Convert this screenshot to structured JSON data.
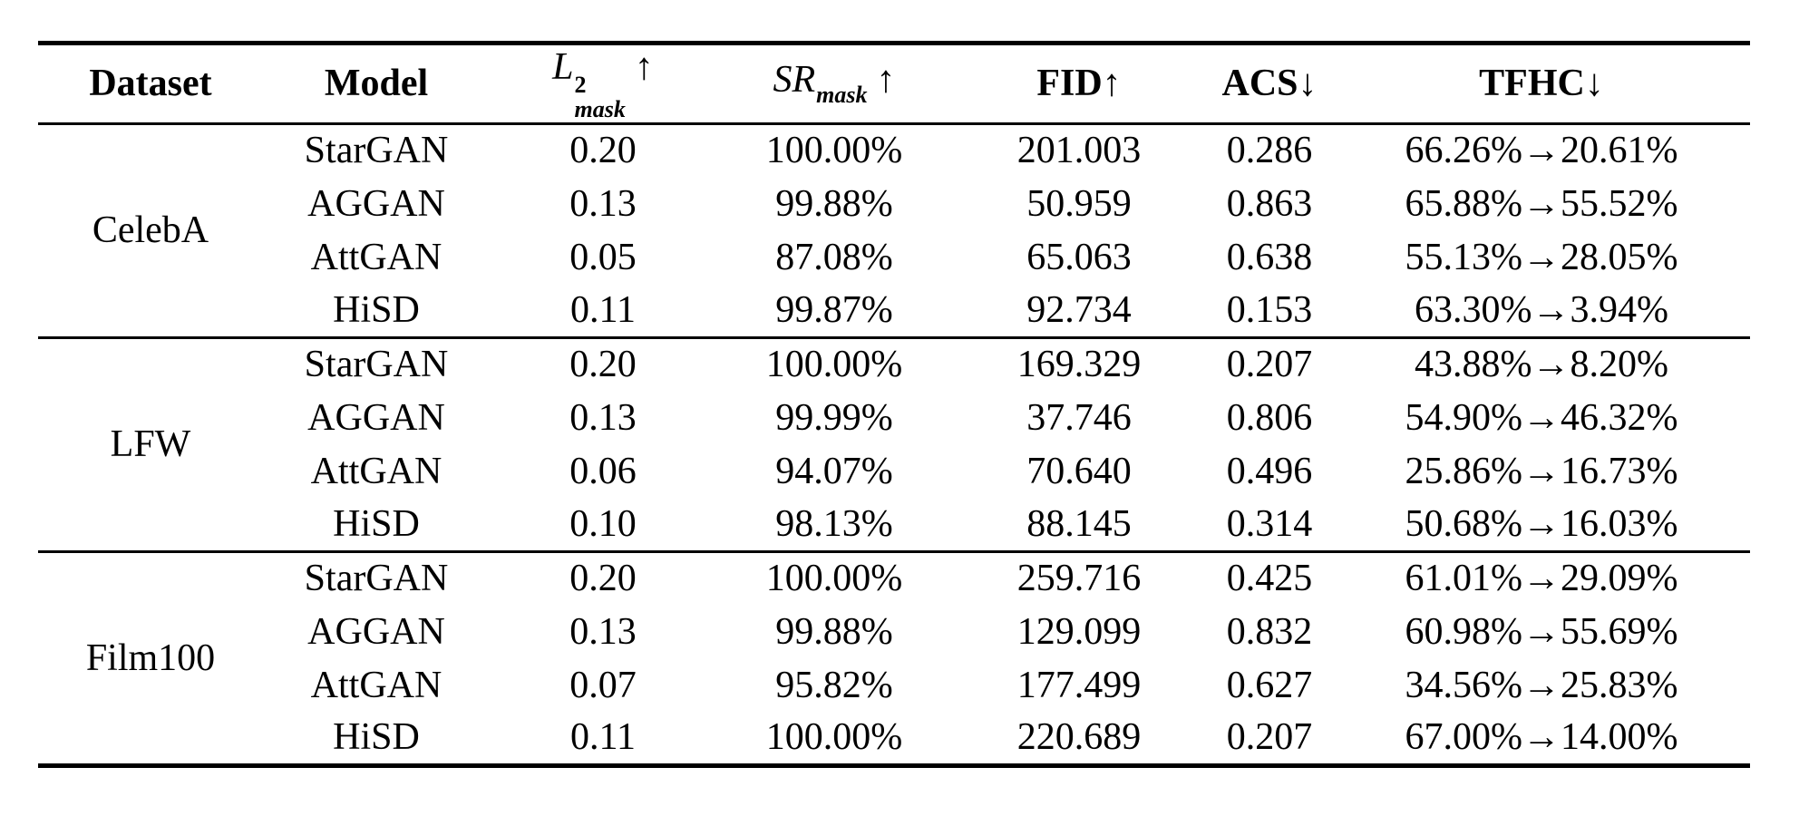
{
  "table": {
    "header": {
      "dataset": "Dataset",
      "model": "Model",
      "l2_base": "L",
      "l2_sup": "2",
      "l2_sub": "mask",
      "l2_arrow": "↑",
      "sr_base": "SR",
      "sr_sub": "mask",
      "sr_arrow": "↑",
      "fid": "FID",
      "fid_arrow": "↑",
      "acs": "ACS",
      "acs_arrow": "↓",
      "tfhc": "TFHC",
      "tfhc_arrow": "↓"
    },
    "groups": [
      {
        "dataset": "CelebA",
        "rows": [
          {
            "model": "StarGAN",
            "l2": "0.20",
            "sr": "100.00%",
            "fid": "201.003",
            "acs": "0.286",
            "tfhc": "66.26%→20.61%"
          },
          {
            "model": "AGGAN",
            "l2": "0.13",
            "sr": "99.88%",
            "fid": "50.959",
            "acs": "0.863",
            "tfhc": "65.88%→55.52%"
          },
          {
            "model": "AttGAN",
            "l2": "0.05",
            "sr": "87.08%",
            "fid": "65.063",
            "acs": "0.638",
            "tfhc": "55.13%→28.05%"
          },
          {
            "model": "HiSD",
            "l2": "0.11",
            "sr": "99.87%",
            "fid": "92.734",
            "acs": "0.153",
            "tfhc": "63.30%→3.94%"
          }
        ]
      },
      {
        "dataset": "LFW",
        "rows": [
          {
            "model": "StarGAN",
            "l2": "0.20",
            "sr": "100.00%",
            "fid": "169.329",
            "acs": "0.207",
            "tfhc": "43.88%→8.20%"
          },
          {
            "model": "AGGAN",
            "l2": "0.13",
            "sr": "99.99%",
            "fid": "37.746",
            "acs": "0.806",
            "tfhc": "54.90%→46.32%"
          },
          {
            "model": "AttGAN",
            "l2": "0.06",
            "sr": "94.07%",
            "fid": "70.640",
            "acs": "0.496",
            "tfhc": "25.86%→16.73%"
          },
          {
            "model": "HiSD",
            "l2": "0.10",
            "sr": "98.13%",
            "fid": "88.145",
            "acs": "0.314",
            "tfhc": "50.68%→16.03%"
          }
        ]
      },
      {
        "dataset": "Film100",
        "rows": [
          {
            "model": "StarGAN",
            "l2": "0.20",
            "sr": "100.00%",
            "fid": "259.716",
            "acs": "0.425",
            "tfhc": "61.01%→29.09%"
          },
          {
            "model": "AGGAN",
            "l2": "0.13",
            "sr": "99.88%",
            "fid": "129.099",
            "acs": "0.832",
            "tfhc": "60.98%→55.69%"
          },
          {
            "model": "AttGAN",
            "l2": "0.07",
            "sr": "95.82%",
            "fid": "177.499",
            "acs": "0.627",
            "tfhc": "34.56%→25.83%"
          },
          {
            "model": "HiSD",
            "l2": "0.11",
            "sr": "100.00%",
            "fid": "220.689",
            "acs": "0.207",
            "tfhc": "67.00%→14.00%"
          }
        ]
      }
    ]
  }
}
